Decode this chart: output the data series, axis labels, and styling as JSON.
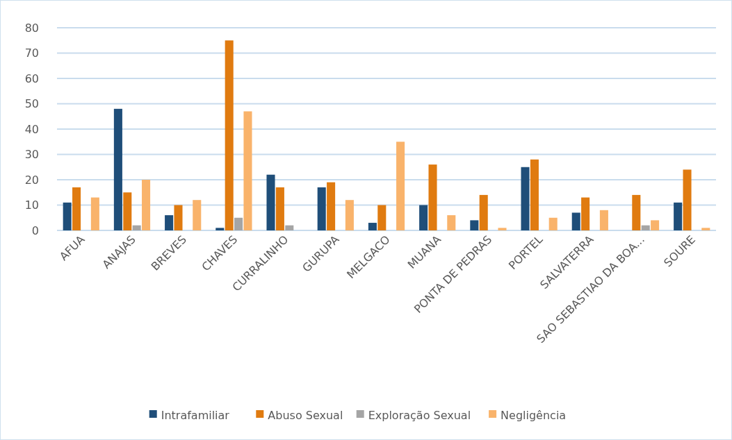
{
  "chart_data": {
    "type": "bar",
    "categories": [
      "AFUA",
      "ANAJAS",
      "BREVES",
      "CHAVES",
      "CURRALINHO",
      "GURUPA",
      "MELGACO",
      "MUANA",
      "PONTA DE PEDRAS",
      "PORTEL",
      "SALVATERRA",
      "SAO SEBASTIAO DA BOA...",
      "SOURE"
    ],
    "series": [
      {
        "name": "Intrafamiliar",
        "color": "#1f4e79",
        "values": [
          11,
          48,
          6,
          1,
          22,
          17,
          3,
          10,
          4,
          25,
          7,
          null,
          11
        ]
      },
      {
        "name": "Abuso Sexual",
        "color": "#e07b10",
        "values": [
          17,
          15,
          10,
          75,
          17,
          19,
          10,
          26,
          14,
          28,
          13,
          14,
          24
        ]
      },
      {
        "name": "Exploração Sexual",
        "color": "#a5a5a5",
        "values": [
          null,
          2,
          null,
          5,
          2,
          null,
          null,
          null,
          null,
          null,
          null,
          2,
          null
        ]
      },
      {
        "name": "Negligência",
        "color": "#f9b36b",
        "values": [
          13,
          20,
          12,
          47,
          null,
          12,
          35,
          6,
          1,
          5,
          8,
          4,
          1
        ]
      }
    ],
    "ylim": [
      0,
      80
    ],
    "yticks": [
      0,
      10,
      20,
      30,
      40,
      50,
      60,
      70,
      80
    ],
    "grid": "y",
    "legend": "bottom"
  }
}
